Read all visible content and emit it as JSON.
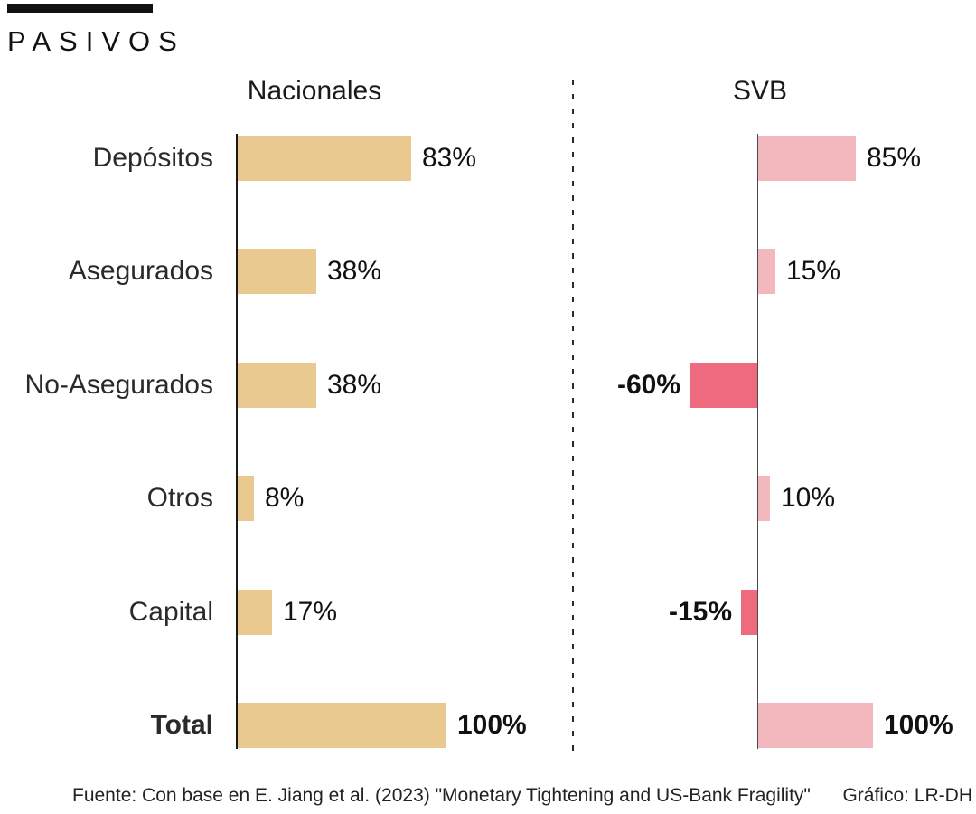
{
  "title": "PASIVOS",
  "panels": {
    "left_header": "Nacionales",
    "right_header": "SVB"
  },
  "footer": {
    "source": "Fuente: Con base en E. Jiang et al. (2023) \"Monetary Tightening and US-Bank Fragility\"",
    "credit": "Gráfico: LR-DH"
  },
  "colors": {
    "accent_bar": "#111111",
    "nacionales_bar": "#E9C98F",
    "svb_positive_bar": "#F3B7BE",
    "svb_negative_bar": "#EE6A7F"
  },
  "chart_data": {
    "type": "bar",
    "orientation": "horizontal",
    "title": "PASIVOS",
    "categories": [
      "Depósitos",
      "Asegurados",
      "No-Asegurados",
      "Otros",
      "Capital",
      "Total"
    ],
    "series": [
      {
        "name": "Nacionales",
        "values": [
          83,
          38,
          38,
          8,
          17,
          100
        ],
        "labels": [
          "83%",
          "38%",
          "38%",
          "8%",
          "17%",
          "100%"
        ]
      },
      {
        "name": "SVB",
        "values": [
          85,
          15,
          -60,
          10,
          -15,
          100
        ],
        "labels": [
          "85%",
          "15%",
          "-60%",
          "10%",
          "-15%",
          "100%"
        ]
      }
    ],
    "value_unit": "%",
    "xlim_pct": [
      -60,
      100
    ],
    "grid": false,
    "legend_position": "column-headers",
    "notes": "Negative SVB values drawn left of axis in darker pink; Total row and negative labels bold"
  }
}
